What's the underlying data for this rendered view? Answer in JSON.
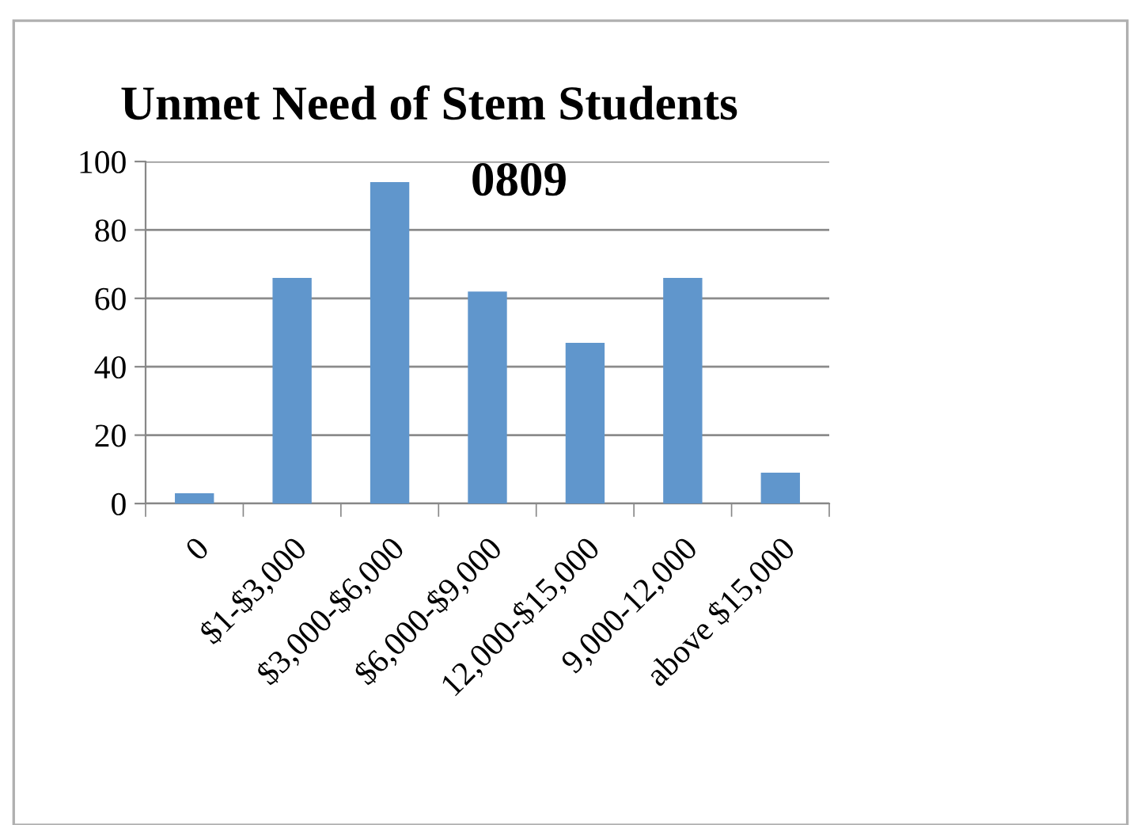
{
  "chart_data": {
    "type": "bar",
    "title": "Unmet Need of Stem Students",
    "subtitle": "0809",
    "categories": [
      "0",
      "$1-$3,000",
      "$3,000-$6,000",
      "$6,000-$9,000",
      "12,000-$15,000",
      "9,000-12,000",
      "above $15,000"
    ],
    "values": [
      3,
      66,
      94,
      62,
      47,
      66,
      9
    ],
    "color": "#6096cc",
    "ylim": [
      0,
      100
    ],
    "yticks": [
      0,
      20,
      40,
      60,
      80,
      100
    ],
    "grid": "y",
    "legend": false
  }
}
